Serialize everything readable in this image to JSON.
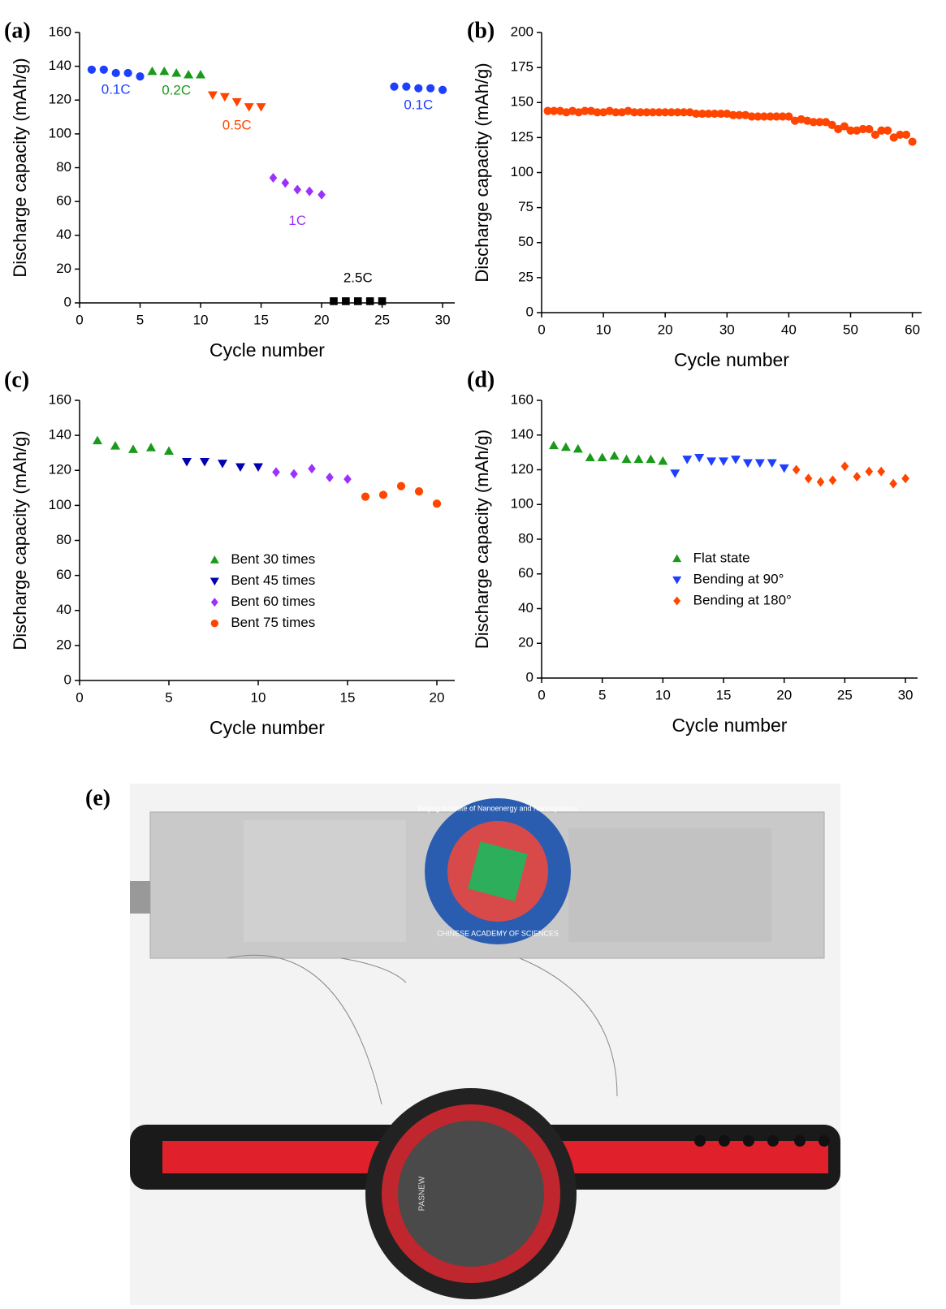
{
  "chart_data": [
    {
      "type": "scatter",
      "panel_label": "(a)",
      "xlabel": "Cycle number",
      "ylabel": "Discharge capacity (mAh/g)",
      "xlim": [
        0,
        31
      ],
      "xticks": [
        0,
        5,
        10,
        15,
        20,
        25,
        30
      ],
      "ylim": [
        0,
        160
      ],
      "yticks": [
        0,
        20,
        40,
        60,
        80,
        100,
        120,
        140,
        160
      ],
      "legend": "none",
      "series": [
        {
          "name": "0.1C",
          "color": "#1f3fff",
          "marker": "circle",
          "x": [
            1,
            2,
            3,
            4,
            5
          ],
          "values": [
            138,
            138,
            136,
            136,
            134
          ]
        },
        {
          "name": "0.2C",
          "color": "#1a9a1a",
          "marker": "triangle",
          "x": [
            6,
            7,
            8,
            9,
            10
          ],
          "values": [
            137,
            137,
            136,
            135,
            135
          ]
        },
        {
          "name": "0.5C",
          "color": "#ff4500",
          "marker": "triangle-down",
          "x": [
            11,
            12,
            13,
            14,
            15
          ],
          "values": [
            123,
            122,
            119,
            116,
            116
          ]
        },
        {
          "name": "1C",
          "color": "#9b30ff",
          "marker": "diamond",
          "x": [
            16,
            17,
            18,
            19,
            20
          ],
          "values": [
            74,
            71,
            67,
            66,
            64
          ]
        },
        {
          "name": "2.5C",
          "color": "#000000",
          "marker": "square",
          "x": [
            21,
            22,
            23,
            24,
            25
          ],
          "values": [
            1,
            1,
            1,
            1,
            1
          ]
        },
        {
          "name": "0.1C",
          "color": "#1f3fff",
          "marker": "circle",
          "x": [
            26,
            27,
            28,
            29,
            30
          ],
          "values": [
            128,
            128,
            127,
            127,
            126
          ]
        }
      ]
    },
    {
      "type": "scatter",
      "panel_label": "(b)",
      "xlabel": "Cycle number",
      "ylabel": "Discharge capacity (mAh/g)",
      "xlim": [
        0,
        61.5
      ],
      "xticks": [
        0,
        10,
        20,
        30,
        40,
        50,
        60
      ],
      "ylim": [
        0,
        200
      ],
      "yticks": [
        0,
        25,
        50,
        75,
        100,
        125,
        150,
        175,
        200
      ],
      "legend": "none",
      "series": [
        {
          "color": "#ff4500",
          "marker": "circle",
          "x": [
            1,
            2,
            3,
            4,
            5,
            6,
            7,
            8,
            9,
            10,
            11,
            12,
            13,
            14,
            15,
            16,
            17,
            18,
            19,
            20,
            21,
            22,
            23,
            24,
            25,
            26,
            27,
            28,
            29,
            30,
            31,
            32,
            33,
            34,
            35,
            36,
            37,
            38,
            39,
            40,
            41,
            42,
            43,
            44,
            45,
            46,
            47,
            48,
            49,
            50,
            51,
            52,
            53,
            54,
            55,
            56,
            57,
            58,
            59,
            60
          ],
          "values": [
            144,
            144,
            144,
            143,
            144,
            143,
            144,
            144,
            143,
            143,
            144,
            143,
            143,
            144,
            143,
            143,
            143,
            143,
            143,
            143,
            143,
            143,
            143,
            143,
            142,
            142,
            142,
            142,
            142,
            142,
            141,
            141,
            141,
            140,
            140,
            140,
            140,
            140,
            140,
            140,
            137,
            138,
            137,
            136,
            136,
            136,
            134,
            131,
            133,
            130,
            130,
            131,
            131,
            127,
            130,
            130,
            125,
            127,
            127,
            122
          ]
        }
      ]
    },
    {
      "type": "scatter",
      "panel_label": "(c)",
      "xlabel": "Cycle number",
      "ylabel": "Discharge capacity (mAh/g)",
      "xlim": [
        0,
        21
      ],
      "xticks": [
        0,
        5,
        10,
        15,
        20
      ],
      "ylim": [
        0,
        160
      ],
      "yticks": [
        0,
        20,
        40,
        60,
        80,
        100,
        120,
        140,
        160
      ],
      "legend": "center",
      "series": [
        {
          "name": "Bent 30 times",
          "color": "#1a9a1a",
          "marker": "triangle",
          "x": [
            1,
            2,
            3,
            4,
            5
          ],
          "values": [
            137,
            134,
            132,
            133,
            131
          ]
        },
        {
          "name": "Bent 45 times",
          "color": "#0000b0",
          "marker": "triangle-down",
          "x": [
            6,
            7,
            8,
            9,
            10
          ],
          "values": [
            125,
            125,
            124,
            122,
            122
          ]
        },
        {
          "name": "Bent 60 times",
          "color": "#9b30ff",
          "marker": "diamond",
          "x": [
            11,
            12,
            13,
            14,
            15
          ],
          "values": [
            119,
            118,
            121,
            116,
            115
          ]
        },
        {
          "name": "Bent 75 times",
          "color": "#ff4500",
          "marker": "circle",
          "x": [
            16,
            17,
            18,
            19,
            20
          ],
          "values": [
            105,
            106,
            111,
            108,
            101
          ]
        }
      ]
    },
    {
      "type": "scatter",
      "panel_label": "(d)",
      "xlabel": "Cycle number",
      "ylabel": "Discharge capacity (mAh/g)",
      "xlim": [
        0,
        31
      ],
      "xticks": [
        0,
        5,
        10,
        15,
        20,
        25,
        30
      ],
      "ylim": [
        0,
        160
      ],
      "yticks": [
        0,
        20,
        40,
        60,
        80,
        100,
        120,
        140,
        160
      ],
      "legend": "center",
      "series": [
        {
          "name": "Flat state",
          "color": "#1a9a1a",
          "marker": "triangle",
          "x": [
            1,
            2,
            3,
            4,
            5,
            6,
            7,
            8,
            9,
            10
          ],
          "values": [
            134,
            133,
            132,
            127,
            127,
            128,
            126,
            126,
            126,
            125
          ]
        },
        {
          "name": "Bending at 90°",
          "color": "#1f3fff",
          "marker": "triangle-down",
          "x": [
            11,
            12,
            13,
            14,
            15,
            16,
            17,
            18,
            19,
            20
          ],
          "values": [
            118,
            126,
            127,
            125,
            125,
            126,
            124,
            124,
            124,
            121
          ]
        },
        {
          "name": "Bending at 180°",
          "color": "#ff4500",
          "marker": "diamond",
          "x": [
            21,
            22,
            23,
            24,
            25,
            26,
            27,
            28,
            29,
            30
          ],
          "values": [
            120,
            115,
            113,
            114,
            122,
            116,
            119,
            119,
            112,
            115
          ]
        }
      ]
    }
  ],
  "photo": {
    "panel_label": "(e)",
    "logo_top": "Beijing Institute of Nanoenergy and Nanosystems",
    "logo_bottom": "CHINESE ACADEMY OF SCIENCES",
    "watch_brand": "PASNEW"
  }
}
